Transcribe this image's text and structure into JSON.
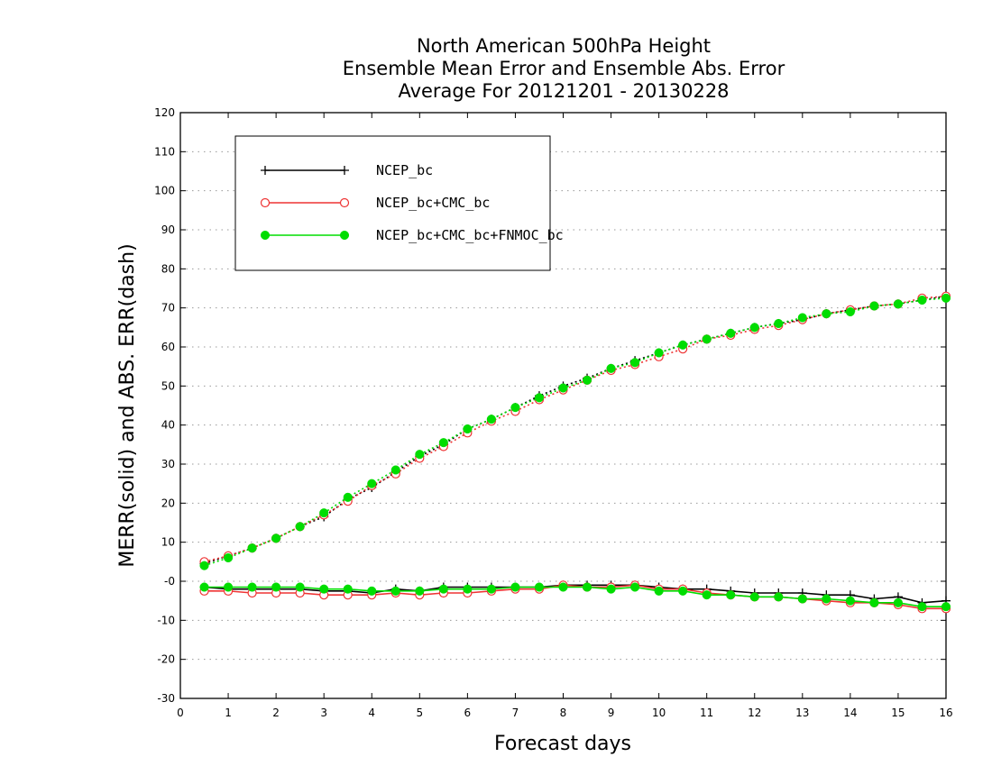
{
  "chart_data": {
    "type": "line",
    "title": [
      "North American 500hPa Height",
      "Ensemble Mean Error and Ensemble Abs. Error",
      "Average For 20121201 - 20130228"
    ],
    "xlabel": "Forecast days",
    "ylabel": "MERR(solid) and ABS. ERR(dash)",
    "xlim": [
      0,
      16
    ],
    "ylim": [
      -30,
      120
    ],
    "xticks": [
      "0",
      "1",
      "2",
      "3",
      "4",
      "5",
      "6",
      "7",
      "8",
      "9",
      "10",
      "11",
      "12",
      "13",
      "14",
      "15",
      "16"
    ],
    "yticks": [
      "-30",
      "-20",
      "-10",
      "-0",
      "10",
      "20",
      "30",
      "40",
      "50",
      "60",
      "70",
      "80",
      "90",
      "100",
      "110",
      "120"
    ],
    "grid": true,
    "legend_position": "top-left",
    "x": [
      0.5,
      1,
      1.5,
      2,
      2.5,
      3,
      3.5,
      4,
      4.5,
      5,
      5.5,
      6,
      6.5,
      7,
      7.5,
      8,
      8.5,
      9,
      9.5,
      10,
      10.5,
      11,
      11.5,
      12,
      12.5,
      13,
      13.5,
      14,
      14.5,
      15,
      15.5,
      16
    ],
    "series": [
      {
        "name": "NCEP_bc",
        "color": "#000000",
        "marker": "plus",
        "merr": [
          -1.5,
          -2,
          -2,
          -2,
          -2,
          -2.5,
          -2.5,
          -3,
          -2,
          -2.5,
          -1.5,
          -1.5,
          -1.5,
          -1.5,
          -1.5,
          -1,
          -1,
          -1,
          -1,
          -1.5,
          -2,
          -2,
          -2.5,
          -3,
          -3,
          -3,
          -3.5,
          -3.5,
          -4.5,
          -4,
          -5.5,
          -5
        ],
        "abserr": [
          4.5,
          6.5,
          8.5,
          11,
          14,
          16.5,
          21,
          24,
          28,
          32,
          35,
          39,
          41.5,
          44.5,
          47.5,
          50,
          52,
          54.5,
          56.5,
          58.5,
          60.5,
          62,
          63.5,
          65,
          66,
          67,
          68.5,
          69.5,
          70.5,
          71,
          72,
          73
        ]
      },
      {
        "name": "NCEP_bc+CMC_bc",
        "color": "#ee3333",
        "marker": "open-circle",
        "merr": [
          -2.5,
          -2.5,
          -3,
          -3,
          -3,
          -3.5,
          -3.5,
          -3.5,
          -3,
          -3.5,
          -3,
          -3,
          -2.5,
          -2,
          -2,
          -1,
          -1.5,
          -1.5,
          -1,
          -2,
          -2,
          -3,
          -3.5,
          -4,
          -4,
          -4.5,
          -5,
          -5.5,
          -5.5,
          -6,
          -7,
          -7
        ],
        "abserr": [
          5,
          6.5,
          8.5,
          11,
          14,
          17,
          20.5,
          24.5,
          27.5,
          31.5,
          34.5,
          38,
          41,
          43.5,
          46.5,
          49,
          51.5,
          54,
          55.5,
          57.5,
          59.5,
          62,
          63,
          64.5,
          65.5,
          67,
          68.5,
          69.5,
          70.5,
          71,
          72.5,
          73
        ]
      },
      {
        "name": "NCEP_bc+CMC_bc+FNMOC_bc",
        "color": "#00dd00",
        "marker": "filled-circle",
        "merr": [
          -1.5,
          -1.5,
          -1.5,
          -1.5,
          -1.5,
          -2,
          -2,
          -2.5,
          -2.5,
          -2.5,
          -2,
          -2,
          -2,
          -1.5,
          -1.5,
          -1.5,
          -1.5,
          -2,
          -1.5,
          -2.5,
          -2.5,
          -3.5,
          -3.5,
          -4,
          -4,
          -4.5,
          -4.5,
          -5,
          -5.5,
          -5.5,
          -6.5,
          -6.5
        ],
        "abserr": [
          4,
          6,
          8.5,
          11,
          14,
          17.5,
          21.5,
          25,
          28.5,
          32.5,
          35.5,
          39,
          41.5,
          44.5,
          47,
          49.5,
          51.5,
          54.5,
          56,
          58.5,
          60.5,
          62,
          63.5,
          65,
          66,
          67.5,
          68.5,
          69,
          70.5,
          71,
          72,
          72.5
        ]
      }
    ]
  }
}
